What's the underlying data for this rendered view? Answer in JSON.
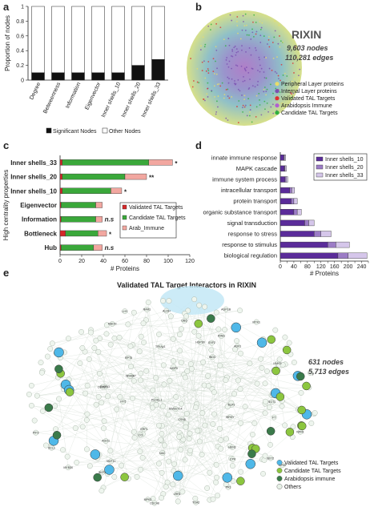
{
  "panels": {
    "a": {
      "letter": "a"
    },
    "b": {
      "letter": "b"
    },
    "c": {
      "letter": "c"
    },
    "d": {
      "letter": "d"
    },
    "e": {
      "letter": "e"
    }
  },
  "network_b": {
    "title": "RIXIN",
    "nodes_text": "9,603 nodes",
    "edges_text": "110,281 edges",
    "legend": [
      {
        "label": "Peripheral Layer proteins",
        "color": "#e8dc6a"
      },
      {
        "label": "Internal Layer proteins",
        "color": "#7b4fb0"
      },
      {
        "label": "Validated TAL Targets",
        "color": "#e03030"
      },
      {
        "label": "Arabidopsis Immune",
        "color": "#b060d0"
      },
      {
        "label": "Candidate TAL Targets",
        "color": "#30b040"
      }
    ]
  },
  "network_e": {
    "title": "Validated TAL Target Interactors in RIXIN",
    "nodes_text": "631 nodes",
    "edges_text": "5,713 edges",
    "legend": [
      {
        "label": "Validated TAL Targets",
        "color": "#4fb8e8"
      },
      {
        "label": "Candidate TAL Targets",
        "color": "#8cc63f"
      },
      {
        "label": "Arabidopsis immune",
        "color": "#3a7a4a"
      },
      {
        "label": "Others",
        "color": "#e6f0e6"
      }
    ],
    "node_labels": [
      "bZIP3",
      "SWT13",
      "TFIIAγ1",
      "SWT11",
      "OsCMT",
      "NRAMP",
      "EXF2",
      "ADF1",
      "HVKO",
      "PLDEL1",
      "INDC",
      "ELP1",
      "ALDH",
      "AGPLB",
      "SWEET14",
      "MTK1",
      "BX72",
      "RING",
      "PR1",
      "WRKY",
      "TGA2",
      "NPR1",
      "SGT1",
      "RAR1",
      "HSP90",
      "CDC48",
      "RPT5",
      "UBQ",
      "CSN5",
      "SKP1",
      "MPK3",
      "MPK6",
      "CPK",
      "RBOH",
      "ERF1",
      "MYB30",
      "NAC",
      "LRR1",
      "AGO1",
      "DCL1",
      "HEN1",
      "HY5",
      "PIF3",
      "CO",
      "FT",
      "LHY"
    ]
  },
  "chart_data": [
    {
      "id": "a",
      "type": "bar",
      "stacked": true,
      "categories": [
        "Degree",
        "Betweenness",
        "Information",
        "Eigenvector",
        "Inner shells_10",
        "Inner shells_20",
        "Inner shells_33"
      ],
      "series": [
        {
          "name": "Significant Nodes",
          "color": "#111111",
          "values": [
            0.1,
            0.1,
            0.1,
            0.1,
            0.1,
            0.2,
            0.28
          ]
        },
        {
          "name": "Other Nodes",
          "color": "#ffffff",
          "values": [
            0.9,
            0.9,
            0.9,
            0.9,
            0.9,
            0.8,
            0.72
          ]
        }
      ],
      "ylabel": "Proportion of nodes",
      "ylim": [
        0,
        1
      ],
      "yticks": [
        "0",
        "0.2",
        "0.4",
        "0.6",
        "0.8",
        "1"
      ],
      "legend_position": "bottom"
    },
    {
      "id": "c",
      "type": "bar",
      "orientation": "horizontal",
      "stacked": true,
      "categories": [
        "Inner shells_33",
        "Inner shells_20",
        "Inner shells_10",
        "Eigenvector",
        "Information",
        "Bottleneck",
        "Hub"
      ],
      "series": [
        {
          "name": "Validated TAL Targets",
          "color": "#d62728",
          "values": [
            2,
            2,
            2,
            1,
            1,
            5,
            1
          ]
        },
        {
          "name": "Candidate TAL Targets",
          "color": "#3aa83a",
          "values": [
            80,
            58,
            45,
            32,
            32,
            30,
            30
          ]
        },
        {
          "name": "Arab_Immune",
          "color": "#f2a7a0",
          "values": [
            22,
            20,
            10,
            6,
            6,
            8,
            8
          ]
        }
      ],
      "annotations": [
        "*",
        "**",
        "*",
        "",
        "n.s",
        "*",
        "n.s"
      ],
      "ylabel": "High centrality properties",
      "xlabel": "# Proteins",
      "xlim": [
        0,
        120
      ],
      "xticks": [
        "0",
        "20",
        "40",
        "60",
        "80",
        "100",
        "120"
      ],
      "legend_position": "right"
    },
    {
      "id": "d",
      "type": "bar",
      "orientation": "horizontal",
      "stacked": true,
      "categories": [
        "innate immune response",
        "MAPK cascade",
        "immune system process",
        "intracellular transport",
        "protein transport",
        "organic substance transport",
        "signal transduction",
        "response to stress",
        "response to stimulus",
        "biological regulation"
      ],
      "series": [
        {
          "name": "Inner shells_10",
          "color": "#5b2c9a",
          "values": [
            10,
            12,
            14,
            28,
            32,
            40,
            72,
            100,
            140,
            170
          ]
        },
        {
          "name": "Inner shells_20",
          "color": "#9c7cc6",
          "values": [
            2,
            2,
            3,
            6,
            8,
            10,
            12,
            20,
            24,
            30
          ]
        },
        {
          "name": "Inner shells_33",
          "color": "#d5c6ea",
          "values": [
            4,
            4,
            5,
            8,
            10,
            12,
            16,
            30,
            40,
            56
          ]
        }
      ],
      "xlabel": "# Proteins",
      "xlim": [
        0,
        260
      ],
      "xticks": [
        "0",
        "20",
        "40",
        "60",
        "80",
        "100",
        "120",
        "140",
        "160",
        "180",
        "200",
        "220",
        "240",
        "260"
      ],
      "legend_position": "top-right"
    }
  ]
}
